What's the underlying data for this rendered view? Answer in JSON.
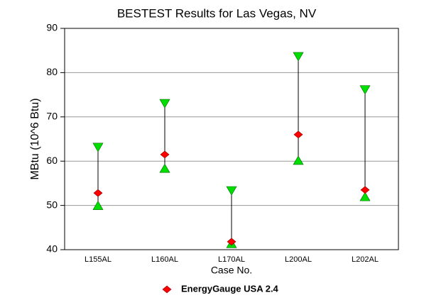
{
  "chart_data": {
    "type": "range",
    "title": "BESTEST Results for Las Vegas, NV",
    "xlabel": "Case No.",
    "ylabel": "MBtu (10^6 Btu)",
    "categories": [
      "L155AL",
      "L160AL",
      "L170AL",
      "L200AL",
      "L202AL"
    ],
    "ranges": {
      "color": "#00dd00",
      "min": [
        50,
        58.4,
        41.4,
        60.2,
        52
      ],
      "max": [
        63.1,
        73.0,
        53.3,
        83.6,
        76.1
      ]
    },
    "series": [
      {
        "name": "EnergyGauge USA 2.4",
        "color": "#ff0000",
        "values": [
          52.8,
          61.5,
          41.8,
          66,
          53.5
        ]
      }
    ],
    "ylim": [
      40,
      90
    ],
    "yticks": [
      40,
      50,
      60,
      70,
      80,
      90
    ],
    "grid": true,
    "legend": "bottom"
  }
}
